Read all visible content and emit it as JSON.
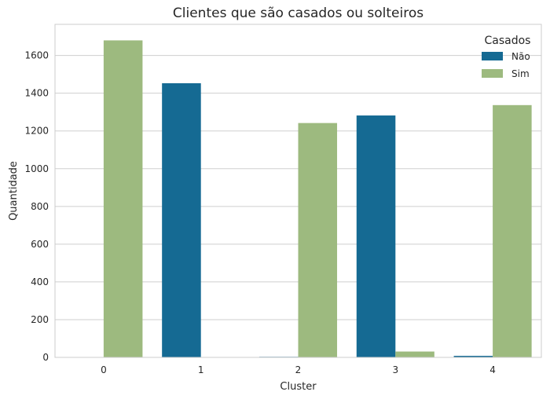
{
  "chart_data": {
    "type": "bar",
    "title": "Clientes que são casados ou solteiros",
    "xlabel": "Cluster",
    "ylabel": "Quantidade",
    "categories": [
      "0",
      "1",
      "2",
      "3",
      "4"
    ],
    "series": [
      {
        "name": "Não",
        "color": "#156a93",
        "values": [
          0,
          1453,
          3,
          1282,
          8
        ]
      },
      {
        "name": "Sim",
        "color": "#9dba7f",
        "values": [
          1680,
          2,
          1242,
          31,
          1337
        ]
      }
    ],
    "ylim": [
      0,
      1765
    ],
    "yticks": [
      0,
      200,
      400,
      600,
      800,
      1000,
      1200,
      1400,
      1600
    ],
    "grid": true,
    "legend": {
      "title": "Casados",
      "position": "top-right"
    },
    "colors": {
      "grid": "#cfcfcf",
      "axes_bg": "#ffffff",
      "spine": "#cccccc"
    }
  }
}
